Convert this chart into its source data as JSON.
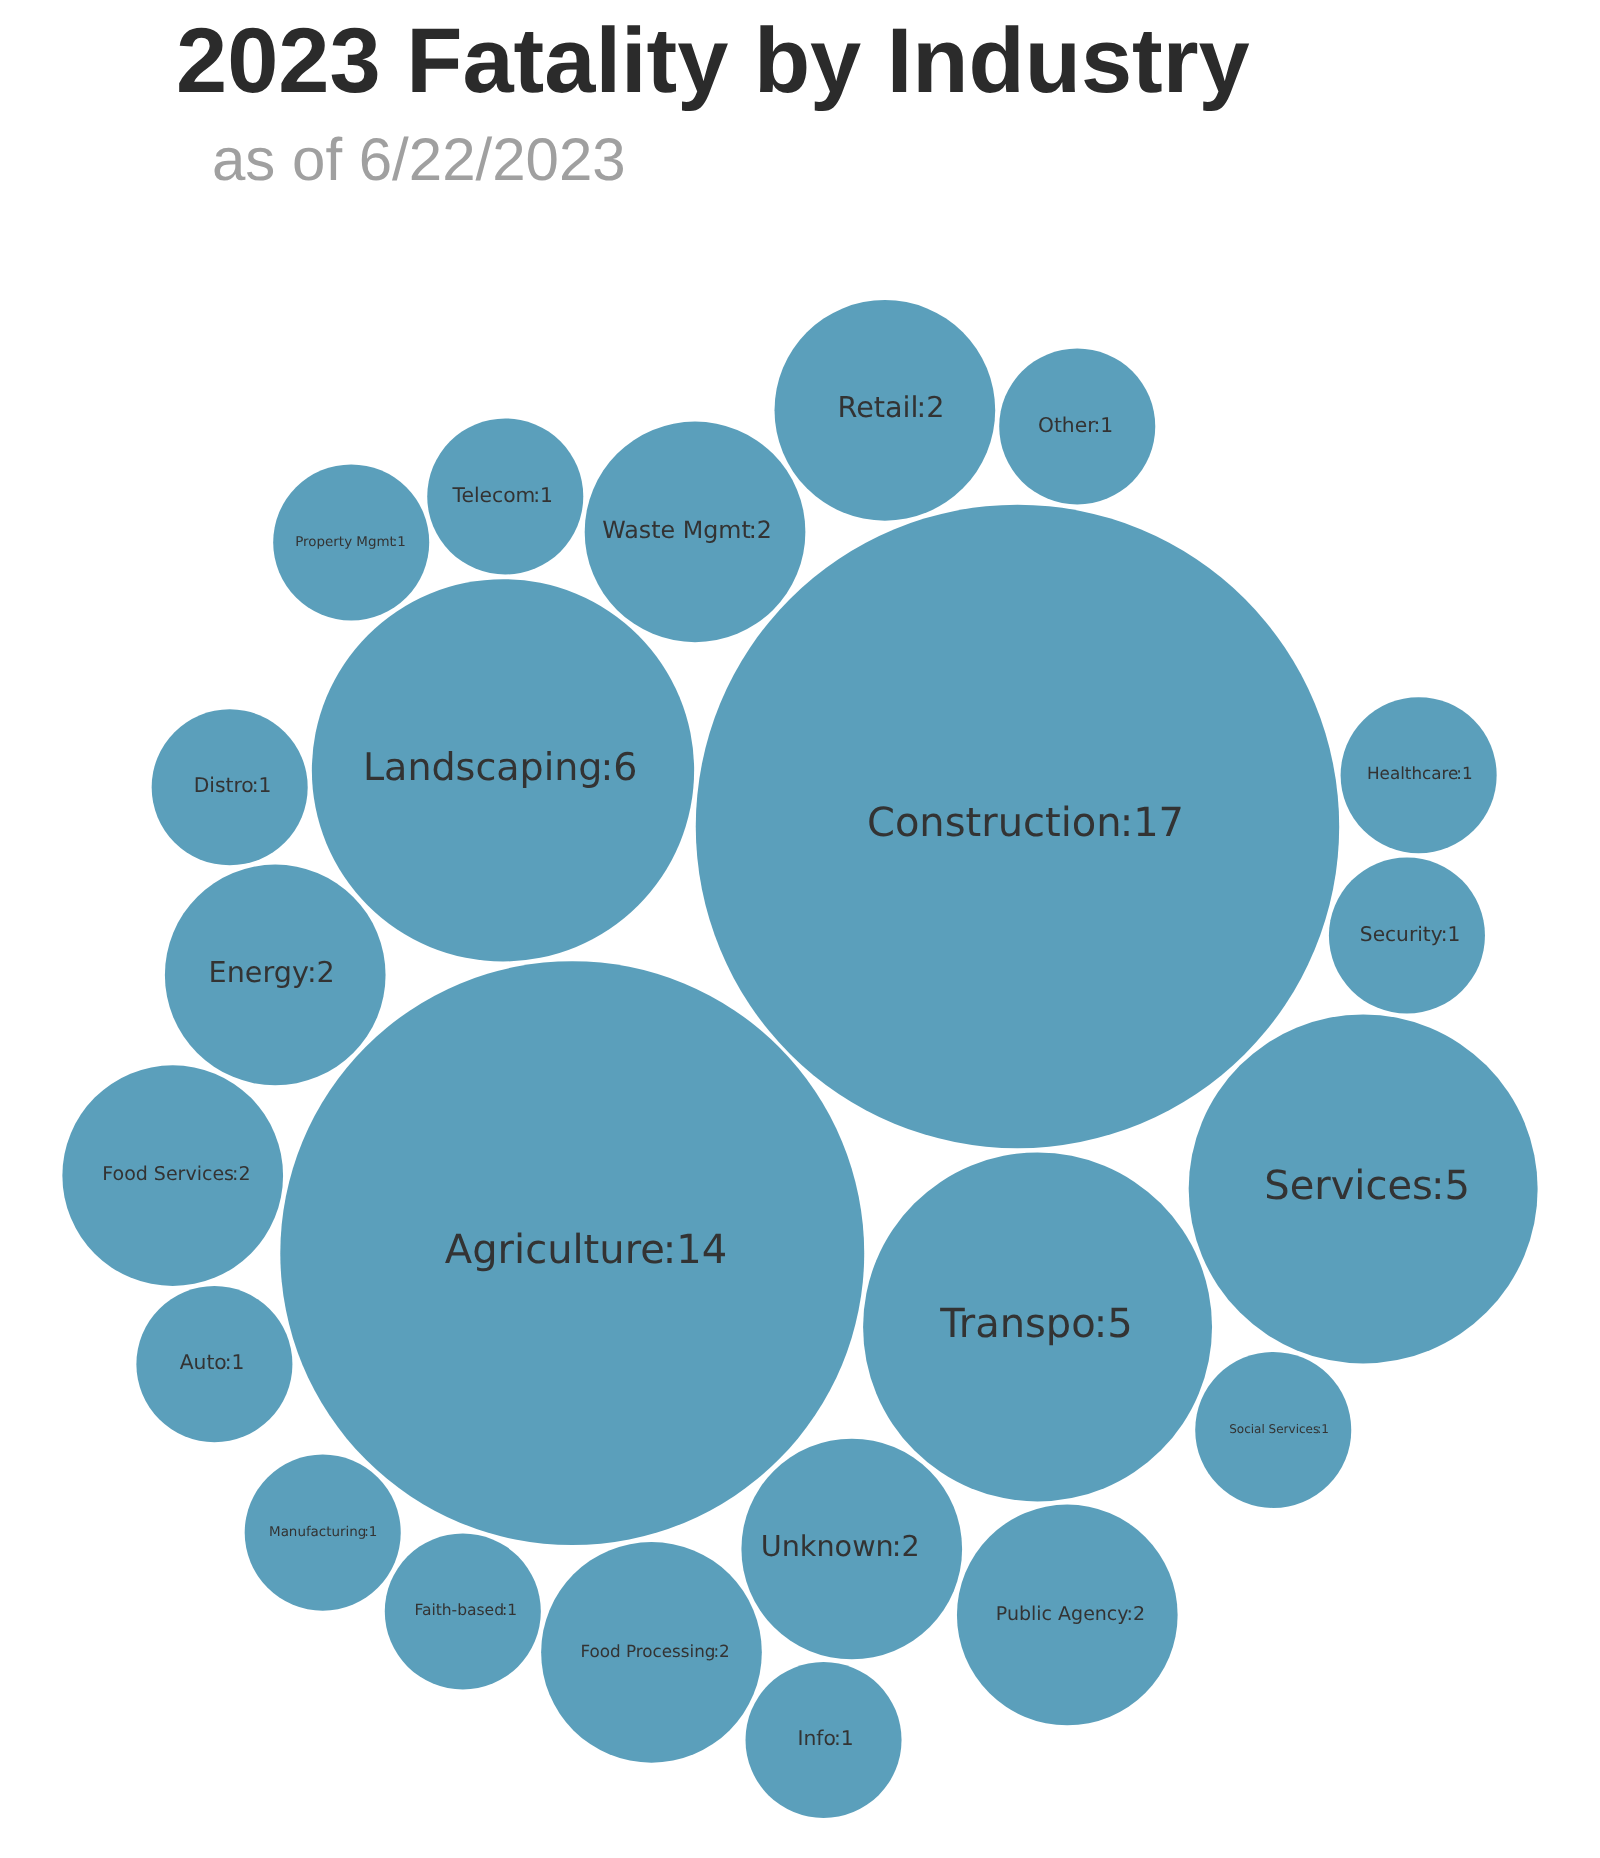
{
  "chart_data": {
    "type": "other",
    "title": "2023 Fatality by Industry",
    "subtitle": "as of 6/22/2023",
    "categories": [
      "Transpo",
      "Telecom",
      "Social Services",
      "Unknown",
      "Waste Mgmt",
      "Services",
      "Construction",
      "Energy",
      "Distro",
      "Security",
      "Faith-based",
      "Food Processing",
      "Retail",
      "Agriculture",
      "Auto",
      "Public Agency",
      "Property Mgmt",
      "Food Services",
      "Other",
      "Healthcare",
      "Manufacturing",
      "Info",
      "Landscaping"
    ],
    "values": [
      5,
      1,
      1,
      2,
      2,
      5,
      17,
      2,
      1,
      1,
      1,
      2,
      2,
      14,
      1,
      2,
      1,
      2,
      1,
      1,
      1,
      1,
      6
    ],
    "value_labels": [
      ":5",
      ":1",
      ":1",
      ":2",
      ":2",
      ":5",
      ":17",
      ":2",
      ":1",
      ":1",
      ":1",
      ":2",
      ":2",
      ":14",
      ":1",
      ":2",
      ":1",
      ":2",
      ":1",
      ":1",
      ":1",
      ":1",
      ":6"
    ],
    "color": "#5b9fbb"
  }
}
